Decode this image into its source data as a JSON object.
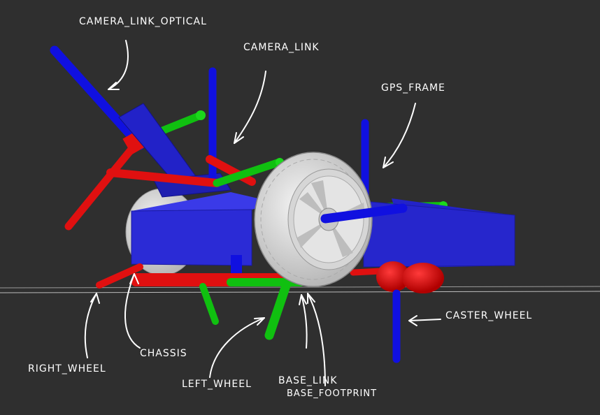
{
  "colors": {
    "background": "#2f2f2f",
    "z_axis": "#1010e0",
    "x_axis": "#e01010",
    "y_axis": "#10c010",
    "chassis": "#2b2bd6",
    "tire": "#e8e8e8",
    "rim": "#cfcfcf",
    "ground_line": "#9a9a9a",
    "annotation": "#ffffff"
  },
  "labels": {
    "camera_link_optical": "CAMERA_LINK_OPTICAL",
    "camera_link": "CAMERA_LINK",
    "gps_frame": "GPS_FRAME",
    "caster_wheel": "CASTER_WHEEL",
    "chassis": "CHASSIS",
    "right_wheel": "RIGHT_WHEEL",
    "left_wheel": "LEFT_WHEEL",
    "base_link": "BASE_LINK",
    "base_footprint": "BASE_FOOTPRINT"
  }
}
